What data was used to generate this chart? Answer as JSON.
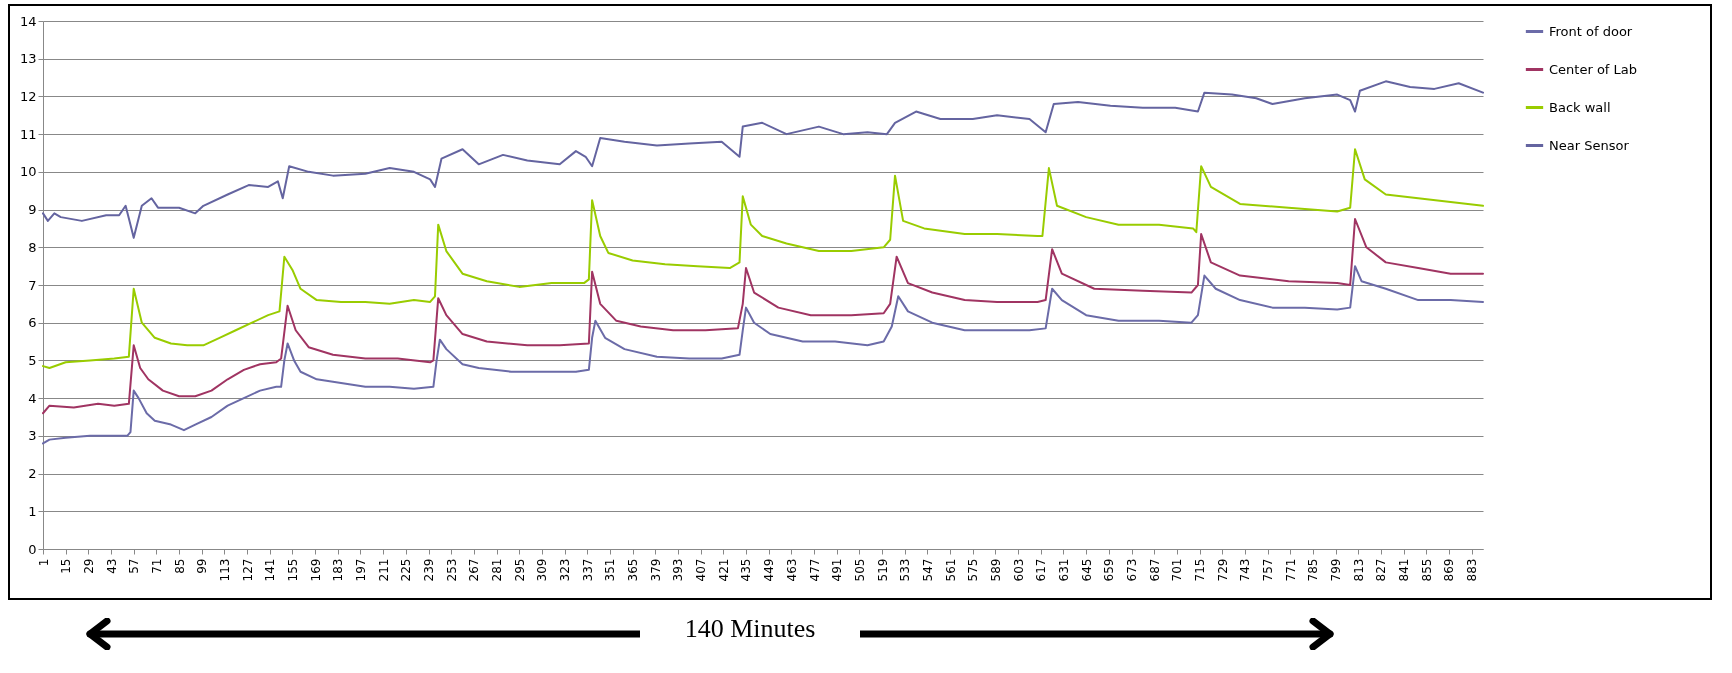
{
  "chart_data": {
    "type": "line",
    "xlim": [
      1,
      890
    ],
    "xticks": [
      1,
      15,
      29,
      43,
      57,
      71,
      85,
      99,
      113,
      127,
      141,
      155,
      169,
      183,
      197,
      211,
      225,
      239,
      253,
      267,
      281,
      295,
      309,
      323,
      337,
      351,
      365,
      379,
      393,
      407,
      421,
      435,
      449,
      463,
      477,
      491,
      505,
      519,
      533,
      547,
      561,
      575,
      589,
      603,
      617,
      631,
      645,
      659,
      673,
      687,
      701,
      715,
      729,
      743,
      757,
      771,
      785,
      799,
      813,
      827,
      841,
      855,
      869,
      883
    ],
    "ylim": [
      0,
      14
    ],
    "yticks": [
      0,
      1,
      2,
      3,
      4,
      5,
      6,
      7,
      8,
      9,
      10,
      11,
      12,
      13,
      14
    ],
    "grid": "y",
    "legend": "right",
    "marker": "none",
    "line_style": "solid",
    "annotations": [
      "140 Minutes"
    ],
    "series": [
      {
        "name": "Front of door",
        "color": "#6b6ba8",
        "x": [
          1,
          5,
          15,
          30,
          45,
          53,
          55,
          57,
          60,
          65,
          70,
          80,
          88,
          95,
          105,
          115,
          125,
          135,
          145,
          148,
          150,
          152,
          156,
          160,
          170,
          185,
          200,
          215,
          230,
          242,
          244,
          246,
          250,
          260,
          270,
          290,
          310,
          330,
          338,
          340,
          342,
          348,
          360,
          380,
          400,
          420,
          431,
          433,
          435,
          440,
          450,
          470,
          490,
          510,
          520,
          525,
          529,
          535,
          550,
          570,
          590,
          610,
          620,
          624,
          630,
          645,
          665,
          690,
          710,
          714,
          718,
          725,
          740,
          760,
          780,
          800,
          808,
          811,
          815,
          830,
          850,
          870,
          890
        ],
        "values": [
          2.8,
          2.9,
          2.95,
          3.0,
          3.0,
          3.0,
          3.1,
          4.2,
          4.0,
          3.6,
          3.4,
          3.3,
          3.15,
          3.3,
          3.5,
          3.8,
          4.0,
          4.2,
          4.3,
          4.3,
          5.0,
          5.45,
          5.0,
          4.7,
          4.5,
          4.4,
          4.3,
          4.3,
          4.25,
          4.3,
          5.0,
          5.55,
          5.3,
          4.9,
          4.8,
          4.7,
          4.7,
          4.7,
          4.75,
          5.6,
          6.05,
          5.6,
          5.3,
          5.1,
          5.05,
          5.05,
          5.15,
          5.8,
          6.4,
          6.0,
          5.7,
          5.5,
          5.5,
          5.4,
          5.5,
          5.9,
          6.7,
          6.3,
          6.0,
          5.8,
          5.8,
          5.8,
          5.85,
          6.9,
          6.6,
          6.2,
          6.05,
          6.05,
          6.0,
          6.2,
          7.25,
          6.9,
          6.6,
          6.4,
          6.4,
          6.35,
          6.4,
          7.5,
          7.1,
          6.9,
          6.6,
          6.6,
          6.55
        ]
      },
      {
        "name": "Center of Lab",
        "color": "#a03462",
        "x": [
          1,
          5,
          20,
          35,
          45,
          54,
          57,
          61,
          66,
          75,
          85,
          95,
          105,
          115,
          125,
          135,
          145,
          148,
          152,
          157,
          165,
          180,
          200,
          220,
          240,
          242,
          245,
          250,
          260,
          275,
          300,
          320,
          338,
          340,
          345,
          355,
          370,
          390,
          410,
          430,
          433,
          435,
          440,
          455,
          475,
          500,
          520,
          524,
          528,
          535,
          550,
          570,
          590,
          615,
          620,
          624,
          630,
          650,
          680,
          710,
          714,
          716,
          722,
          740,
          770,
          800,
          808,
          811,
          818,
          830,
          850,
          870,
          890
        ],
        "values": [
          3.6,
          3.8,
          3.75,
          3.85,
          3.8,
          3.85,
          5.4,
          4.8,
          4.5,
          4.2,
          4.05,
          4.05,
          4.2,
          4.5,
          4.75,
          4.9,
          4.95,
          5.05,
          6.45,
          5.8,
          5.35,
          5.15,
          5.05,
          5.05,
          4.95,
          5.0,
          6.65,
          6.2,
          5.7,
          5.5,
          5.4,
          5.4,
          5.45,
          7.35,
          6.5,
          6.05,
          5.9,
          5.8,
          5.8,
          5.85,
          6.5,
          7.45,
          6.8,
          6.4,
          6.2,
          6.2,
          6.25,
          6.5,
          7.75,
          7.05,
          6.8,
          6.6,
          6.55,
          6.55,
          6.6,
          7.95,
          7.3,
          6.9,
          6.85,
          6.8,
          7.0,
          8.35,
          7.6,
          7.25,
          7.1,
          7.05,
          7.0,
          8.75,
          8.0,
          7.6,
          7.45,
          7.3,
          7.3
        ]
      },
      {
        "name": "Back wall",
        "color": "#99cc00",
        "x": [
          1,
          5,
          15,
          30,
          45,
          54,
          57,
          62,
          70,
          80,
          90,
          100,
          110,
          120,
          130,
          140,
          147,
          150,
          155,
          160,
          170,
          185,
          200,
          215,
          230,
          240,
          243,
          245,
          250,
          260,
          275,
          295,
          315,
          335,
          338,
          340,
          345,
          350,
          365,
          385,
          405,
          425,
          431,
          433,
          438,
          445,
          460,
          480,
          500,
          520,
          524,
          527,
          532,
          545,
          570,
          590,
          615,
          618,
          622,
          627,
          645,
          665,
          690,
          711,
          713,
          716,
          722,
          740,
          770,
          800,
          808,
          811,
          817,
          830,
          850,
          870,
          890
        ],
        "values": [
          4.85,
          4.8,
          4.95,
          5.0,
          5.05,
          5.1,
          6.9,
          6.0,
          5.6,
          5.45,
          5.4,
          5.4,
          5.6,
          5.8,
          6.0,
          6.2,
          6.3,
          7.75,
          7.4,
          6.9,
          6.6,
          6.55,
          6.55,
          6.5,
          6.6,
          6.55,
          6.7,
          8.6,
          7.9,
          7.3,
          7.1,
          6.95,
          7.05,
          7.05,
          7.15,
          9.25,
          8.3,
          7.85,
          7.65,
          7.55,
          7.5,
          7.45,
          7.6,
          9.35,
          8.6,
          8.3,
          8.1,
          7.9,
          7.9,
          8.0,
          8.2,
          9.9,
          8.7,
          8.5,
          8.35,
          8.35,
          8.3,
          8.3,
          10.1,
          9.1,
          8.8,
          8.6,
          8.6,
          8.5,
          8.4,
          10.15,
          9.6,
          9.15,
          9.05,
          8.95,
          9.05,
          10.6,
          9.8,
          9.4,
          9.3,
          9.2,
          9.1
        ]
      },
      {
        "name": "Near Sensor",
        "color": "#6464a0",
        "x": [
          1,
          4,
          8,
          12,
          25,
          40,
          48,
          52,
          55,
          57,
          62,
          68,
          72,
          85,
          95,
          100,
          115,
          128,
          140,
          146,
          149,
          153,
          165,
          180,
          200,
          215,
          230,
          240,
          243,
          247,
          260,
          270,
          285,
          300,
          320,
          330,
          336,
          340,
          345,
          360,
          380,
          400,
          420,
          431,
          433,
          445,
          460,
          480,
          495,
          510,
          522,
          527,
          540,
          555,
          575,
          590,
          610,
          620,
          625,
          640,
          660,
          680,
          700,
          714,
          718,
          735,
          750,
          760,
          780,
          800,
          808,
          811,
          814,
          830,
          845,
          860,
          875,
          890
        ],
        "values": [
          8.9,
          8.7,
          8.9,
          8.8,
          8.7,
          8.85,
          8.85,
          9.1,
          8.6,
          8.25,
          9.1,
          9.3,
          9.05,
          9.05,
          8.9,
          9.1,
          9.4,
          9.65,
          9.6,
          9.75,
          9.3,
          10.15,
          10.0,
          9.9,
          9.95,
          10.1,
          10.0,
          9.8,
          9.6,
          10.35,
          10.6,
          10.2,
          10.45,
          10.3,
          10.2,
          10.55,
          10.4,
          10.15,
          10.9,
          10.8,
          10.7,
          10.75,
          10.8,
          10.4,
          11.2,
          11.3,
          11.0,
          11.2,
          11.0,
          11.05,
          11.0,
          11.3,
          11.6,
          11.4,
          11.4,
          11.5,
          11.4,
          11.05,
          11.8,
          11.85,
          11.75,
          11.7,
          11.7,
          11.6,
          12.1,
          12.05,
          11.95,
          11.8,
          11.95,
          12.05,
          11.9,
          11.6,
          12.15,
          12.4,
          12.25,
          12.2,
          12.35,
          12.1
        ]
      }
    ]
  }
}
